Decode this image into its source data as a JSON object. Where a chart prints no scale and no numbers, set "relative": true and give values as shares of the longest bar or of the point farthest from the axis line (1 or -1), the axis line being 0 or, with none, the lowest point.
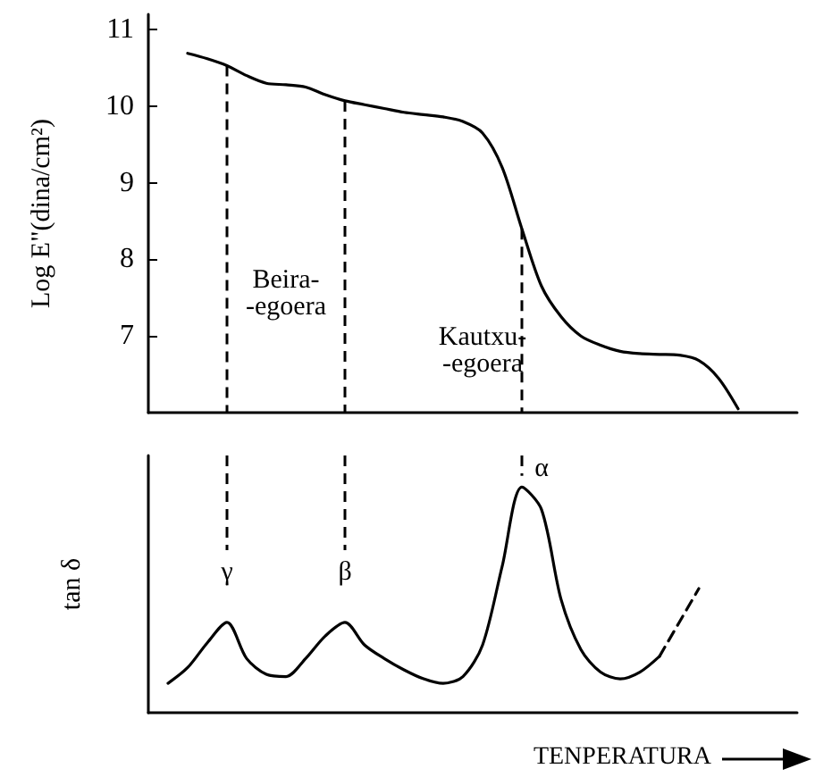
{
  "chart_data": [
    {
      "type": "line",
      "ylabel": "Log E\"(dina/cm²)",
      "ylim": [
        6,
        11.2
      ],
      "yticks": [
        7,
        8,
        9,
        10,
        11
      ],
      "tick_labels": "y",
      "marker": "none",
      "color": "#000000",
      "categories": [
        null,
        null,
        null,
        null,
        null,
        null,
        null,
        null,
        null,
        null,
        null,
        null,
        null,
        null,
        null,
        null,
        null,
        null,
        null,
        null,
        null,
        null,
        null,
        null,
        null,
        null,
        null,
        null,
        null,
        null,
        null,
        null,
        null,
        null
      ],
      "values": [
        null,
        null,
        10.69,
        10.62,
        10.53,
        10.4,
        10.3,
        10.28,
        10.25,
        10.15,
        10.07,
        10.02,
        9.97,
        9.92,
        9.89,
        9.86,
        9.8,
        9.65,
        9.2,
        8.4,
        7.65,
        7.25,
        7.0,
        6.88,
        6.8,
        6.77,
        6.76,
        6.75,
        6.68,
        6.45,
        6.05,
        null,
        null,
        null
      ],
      "annotations": [
        "Beira-\n-egoera",
        "Kautxu-\n-egoera"
      ]
    },
    {
      "type": "line",
      "ylabel": "tan δ",
      "xlabel": "TENPERATURA",
      "relative": true,
      "tick_labels": false,
      "marker": "none",
      "categories": [
        null,
        null,
        null,
        null,
        null,
        null,
        null,
        null,
        null,
        null,
        null,
        null,
        null,
        null,
        null,
        null,
        null,
        null,
        null,
        null,
        null,
        null,
        null,
        null,
        null,
        null,
        null,
        null,
        null,
        null,
        null,
        null,
        null,
        null
      ],
      "series": [
        {
          "color": "#000000",
          "line_style": "solid",
          "values": [
            null,
            0.13,
            0.2,
            0.31,
            0.4,
            0.24,
            0.17,
            0.16,
            0.24,
            0.34,
            0.4,
            0.3,
            0.24,
            0.19,
            0.15,
            0.13,
            0.16,
            0.3,
            0.65,
            1.0,
            0.9,
            0.5,
            0.28,
            0.18,
            0.15,
            0.18,
            0.25,
            null,
            null,
            null,
            null,
            null,
            null,
            null
          ]
        },
        {
          "color": "#000000",
          "line_style": "dashed",
          "values": [
            null,
            null,
            null,
            null,
            null,
            null,
            null,
            null,
            null,
            null,
            null,
            null,
            null,
            null,
            null,
            null,
            null,
            null,
            null,
            null,
            null,
            null,
            null,
            null,
            null,
            null,
            0.25,
            0.4,
            0.55,
            null,
            null,
            null,
            null,
            null
          ]
        }
      ],
      "annotations": [
        "γ",
        "β",
        "α"
      ]
    }
  ]
}
